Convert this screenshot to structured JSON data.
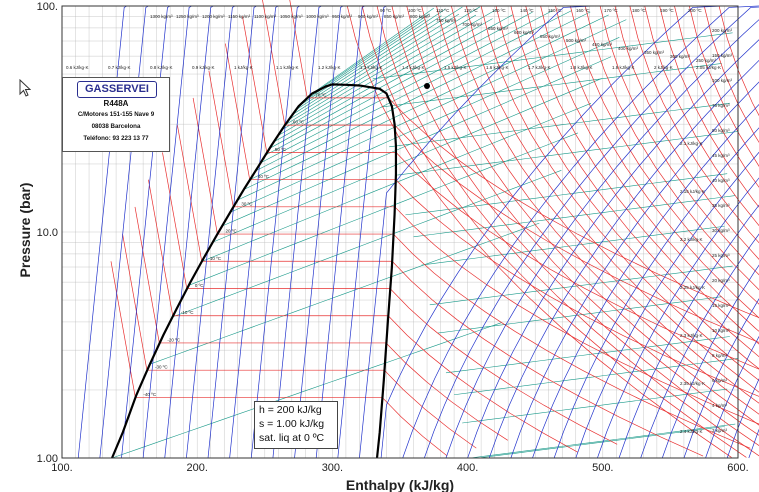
{
  "chart_data": {
    "type": "line",
    "title": "",
    "refrigerant": "R448A",
    "xlabel": "Enthalpy (kJ/kg)",
    "ylabel": "Pressure (bar)",
    "x_range": [
      100,
      600
    ],
    "y_range": [
      1.0,
      100.0
    ],
    "y_scale": "log",
    "x_ticks": [
      "100.",
      "200.",
      "300.",
      "400.",
      "500.",
      "600."
    ],
    "x_tick_values": [
      100,
      200,
      300,
      400,
      500,
      600
    ],
    "y_ticks": [
      "1.00",
      "10.0",
      "100."
    ],
    "y_tick_values": [
      1,
      10,
      100
    ],
    "saturation_dome": {
      "liquid": [
        [
          137,
          1.0
        ],
        [
          145,
          1.3
        ],
        [
          155,
          1.9
        ],
        [
          165,
          2.6
        ],
        [
          175,
          3.5
        ],
        [
          185,
          4.6
        ],
        [
          195,
          6.0
        ],
        [
          205,
          7.7
        ],
        [
          215,
          9.8
        ],
        [
          225,
          12.4
        ],
        [
          235,
          15.6
        ],
        [
          245,
          19.4
        ],
        [
          255,
          24.2
        ],
        [
          265,
          29.8
        ],
        [
          275,
          36.0
        ],
        [
          285,
          41.0
        ],
        [
          295,
          44.0
        ],
        [
          300,
          45.0
        ]
      ],
      "vapor": [
        [
          300,
          45.0
        ],
        [
          310,
          44.8
        ],
        [
          320,
          44.5
        ],
        [
          325,
          44.0
        ],
        [
          335,
          43.0
        ],
        [
          340,
          41.0
        ],
        [
          344,
          36.0
        ],
        [
          346,
          30.0
        ],
        [
          347,
          24.0
        ],
        [
          347,
          18.0
        ],
        [
          346,
          12.0
        ],
        [
          344,
          7.0
        ],
        [
          341,
          4.0
        ],
        [
          338,
          2.2
        ],
        [
          335,
          1.3
        ],
        [
          333,
          1.0
        ]
      ]
    },
    "isotherms_celsius": [
      -40,
      -30,
      -20,
      -10,
      0,
      10,
      20,
      30,
      40,
      50,
      60,
      70,
      80
    ],
    "isotherm_labels": [
      "-40 ºC",
      "-30 ºC",
      "-20 ºC",
      "-10 ºC",
      "0 ºC",
      "10 ºC",
      "20 ºC",
      "30 ºC",
      "40 ºC",
      "50 ºC",
      "60 ºC",
      "70 ºC",
      "80 ºC"
    ],
    "top_temp_labels": [
      "90 ºC",
      "100 ºC",
      "110 ºC",
      "120 ºC",
      "130 ºC",
      "140 ºC",
      "150 ºC",
      "160 ºC",
      "170 ºC",
      "180 ºC",
      "190 ºC",
      "200 ºC"
    ],
    "density_labels_top": [
      "1300 kg/m³",
      "1250 kg/m³",
      "1200 kg/m³",
      "1150 kg/m³",
      "1100 kg/m³",
      "1050 kg/m³",
      "1000 kg/m³",
      "950 kg/m³",
      "900 kg/m³",
      "850 kg/m³",
      "800 kg/m³",
      "750 kg/m³",
      "700 kg/m³",
      "650 kg/m³",
      "600 kg/m³",
      "550 kg/m³",
      "500 kg/m³",
      "450 kg/m³",
      "400 kg/m³",
      "350 kg/m³",
      "300 kg/m³",
      "250 kg/m³"
    ],
    "density_labels_right": [
      "200 kg/m³",
      "150 kg/m³",
      "100 kg/m³",
      "75 kg/m³",
      "50 kg/m³",
      "45 kg/m³",
      "40 kg/m³",
      "35 kg/m³",
      "30 kg/m³",
      "25 kg/m³",
      "20 kg/m³",
      "15 kg/m³",
      "10 kg/m³",
      "8 kg/m³",
      "6 kg/m³",
      "4 kg/m³",
      "3 kg/m³"
    ],
    "entropy_labels": [
      "0.6 kJ/kg·K",
      "0.7 kJ/kg·K",
      "0.8 kJ/kg·K",
      "0.9 kJ/kg·K",
      "1 kJ/kg·K",
      "1.1 kJ/kg·K",
      "1.2 kJ/kg·K",
      "1.3 kJ/kg·K",
      "1.4 kJ/kg·K",
      "1.5 kJ/kg·K",
      "1.6 kJ/kg·K",
      "1.7 kJ/kg·K",
      "1.8 kJ/kg·K",
      "1.9 kJ/kg·K",
      "2 kJ/kg·K",
      "2.05 kJ/kg·K",
      "2.1 kJ/kg·K",
      "2.15 kJ/kg·K",
      "2.2 kJ/kg·K",
      "2.25 kJ/kg·K",
      "2.3 kJ/kg·K",
      "2.35 kJ/kg·K",
      "2.4 kJ/kg·K"
    ],
    "colors": {
      "isotherm": "#e83030",
      "isentrope": "#2233cc",
      "isochore": "#1a9a8a",
      "saturation": "#000000",
      "grid": "#bbbbbb"
    },
    "grid": true,
    "legend": "none"
  },
  "logo": {
    "brand": "GASSERVEI",
    "refrigerant": "R448A",
    "address": "C/Motores 151-155 Nave 9",
    "city": "08038 Barcelona",
    "phone": "Teléfono: 93 223 13 77"
  },
  "annotation": {
    "line1": "h = 200 kJ/kg",
    "line2": "s = 1.00 kJ/kg",
    "line3": "sat. liq at 0 ºC"
  }
}
